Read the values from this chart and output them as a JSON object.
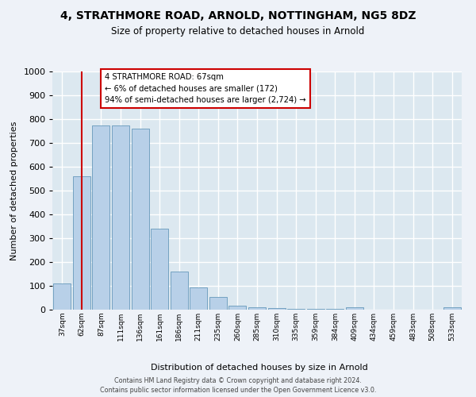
{
  "title1": "4, STRATHMORE ROAD, ARNOLD, NOTTINGHAM, NG5 8DZ",
  "title2": "Size of property relative to detached houses in Arnold",
  "xlabel": "Distribution of detached houses by size in Arnold",
  "ylabel": "Number of detached properties",
  "bar_color": "#b8d0e8",
  "bar_edge_color": "#6699bb",
  "plot_bg_color": "#dce8f0",
  "fig_bg_color": "#eef2f8",
  "grid_color": "#ffffff",
  "red_line_color": "#cc0000",
  "categories": [
    "37sqm",
    "62sqm",
    "87sqm",
    "111sqm",
    "136sqm",
    "161sqm",
    "186sqm",
    "211sqm",
    "235sqm",
    "260sqm",
    "285sqm",
    "310sqm",
    "335sqm",
    "359sqm",
    "384sqm",
    "409sqm",
    "434sqm",
    "459sqm",
    "483sqm",
    "508sqm",
    "533sqm"
  ],
  "values": [
    110,
    560,
    775,
    775,
    760,
    340,
    160,
    93,
    52,
    17,
    10,
    7,
    5,
    5,
    5,
    10,
    0,
    0,
    0,
    0,
    10
  ],
  "red_line_index": 1,
  "annotation_title": "4 STRATHMORE ROAD: 67sqm",
  "annotation_line1": "← 6% of detached houses are smaller (172)",
  "annotation_line2": "94% of semi-detached houses are larger (2,724) →",
  "ylim": [
    0,
    1000
  ],
  "yticks": [
    0,
    100,
    200,
    300,
    400,
    500,
    600,
    700,
    800,
    900,
    1000
  ],
  "footer1": "Contains HM Land Registry data © Crown copyright and database right 2024.",
  "footer2": "Contains public sector information licensed under the Open Government Licence v3.0."
}
